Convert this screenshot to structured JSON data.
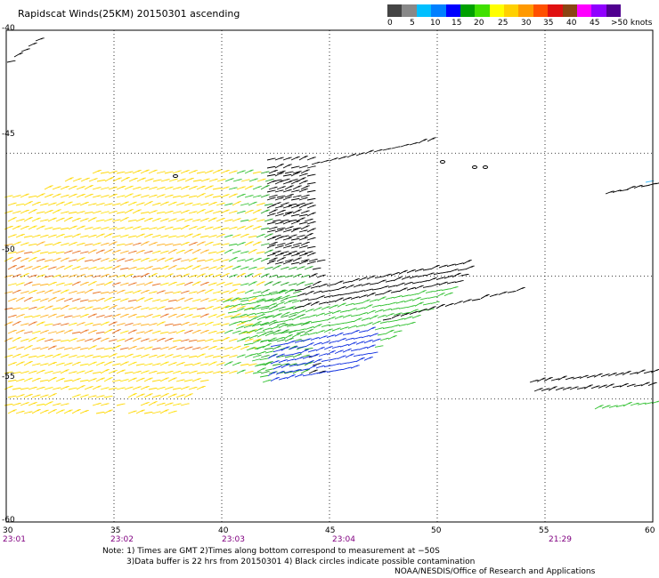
{
  "title": "Rapidscat Winds(25KM) 20150301 ascending",
  "colorbar": {
    "labels": [
      "0",
      "5",
      "10",
      "15",
      "20",
      "25",
      "30",
      "35",
      "40",
      "45",
      ">50 knots"
    ],
    "colors": [
      "#444444",
      "#888888",
      "#00bfff",
      "#0080ff",
      "#0000ff",
      "#00a000",
      "#40e000",
      "#ffff00",
      "#ffd000",
      "#ff9900",
      "#ff5000",
      "#e01010",
      "#8b4513",
      "#ff00ff",
      "#9000ff",
      "#500090"
    ]
  },
  "latitudes": [
    "-40",
    "-45",
    "-50",
    "-55",
    "-60"
  ],
  "longitudes": [
    "30",
    "35",
    "40",
    "45",
    "50",
    "55",
    "60"
  ],
  "times": [
    "23:01",
    "23:02",
    "23:03",
    "23:04",
    "21:29"
  ],
  "notes": {
    "line1": "Note: 1) Times are GMT 2)Times along bottom correspond to measurement at −50S",
    "line2": "3)Data buffer is 22 hrs from 20150301 4) Black circles indicate possible contamination",
    "line3": "NOAA/NESDIS/Office of Research and Applications"
  }
}
